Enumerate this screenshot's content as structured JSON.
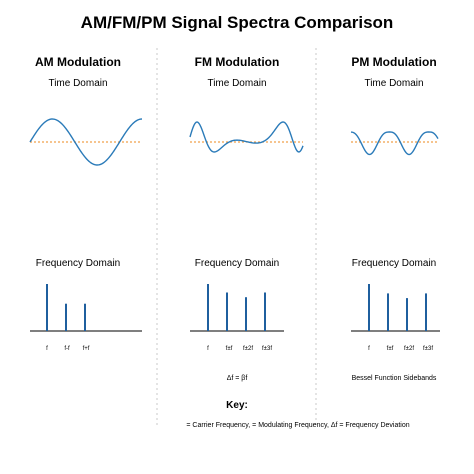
{
  "title": "AM/FM/PM Signal Spectra Comparison",
  "colors": {
    "signal": "#2b7bb9",
    "carrier": "#f0a04b",
    "spectrum": "#1f5f9e",
    "axis": "#333333",
    "divider": "#c8c8c8"
  },
  "columns": [
    {
      "heading": "AM Modulation",
      "time_label": "Time Domain",
      "freq_label": "Frequency Domain",
      "tick_labels": [
        "f",
        "f-f",
        "f+f"
      ],
      "bar_levels": [
        1.0,
        0.58,
        0.58
      ],
      "note": ""
    },
    {
      "heading": "FM Modulation",
      "time_label": "Time Domain",
      "freq_label": "Frequency Domain",
      "tick_labels": [
        "f",
        "f±f",
        "f±2f",
        "f±3f"
      ],
      "bar_levels": [
        1.0,
        0.82,
        0.72,
        0.82
      ],
      "note": "Δf = βf"
    },
    {
      "heading": "PM Modulation",
      "time_label": "Time Domain",
      "freq_label": "Frequency Domain",
      "tick_labels": [
        "f",
        "f±f",
        "f±2f",
        "f±3f"
      ],
      "bar_levels": [
        1.0,
        0.8,
        0.7,
        0.8
      ],
      "note": "Bessel Function Sidebands"
    }
  ],
  "key": {
    "heading": "Key:",
    "text": "= Carrier Frequency,   = Modulating Frequency, Δf = Frequency Deviation"
  }
}
